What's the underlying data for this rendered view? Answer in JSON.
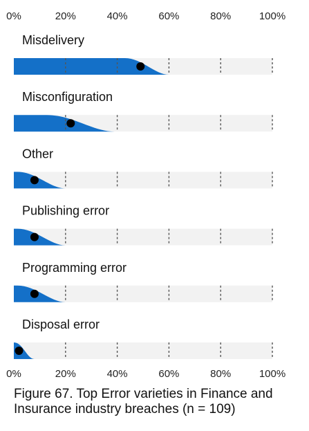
{
  "chart_data": {
    "type": "dot-distribution",
    "x_ticks": [
      "0%",
      "20%",
      "40%",
      "60%",
      "80%",
      "100%"
    ],
    "xlim": [
      0,
      100
    ],
    "series": [
      {
        "category": "Misdelivery",
        "value": 49,
        "spread_end": 60
      },
      {
        "category": "Misconfiguration",
        "value": 22,
        "spread_end": 39
      },
      {
        "category": "Other",
        "value": 8,
        "spread_end": 20
      },
      {
        "category": "Publishing error",
        "value": 8,
        "spread_end": 20
      },
      {
        "category": "Programming error",
        "value": 8,
        "spread_end": 20
      },
      {
        "category": "Disposal error",
        "value": 2,
        "spread_end": 8
      }
    ],
    "colors": {
      "fill": "#1470c8",
      "track": "#f2f2f2",
      "dot": "#000000",
      "grid": "#555555"
    }
  },
  "caption": {
    "line1": "Figure 67. Top Error varieties in Finance and",
    "line2": "Insurance industry breaches (n = 109)"
  }
}
